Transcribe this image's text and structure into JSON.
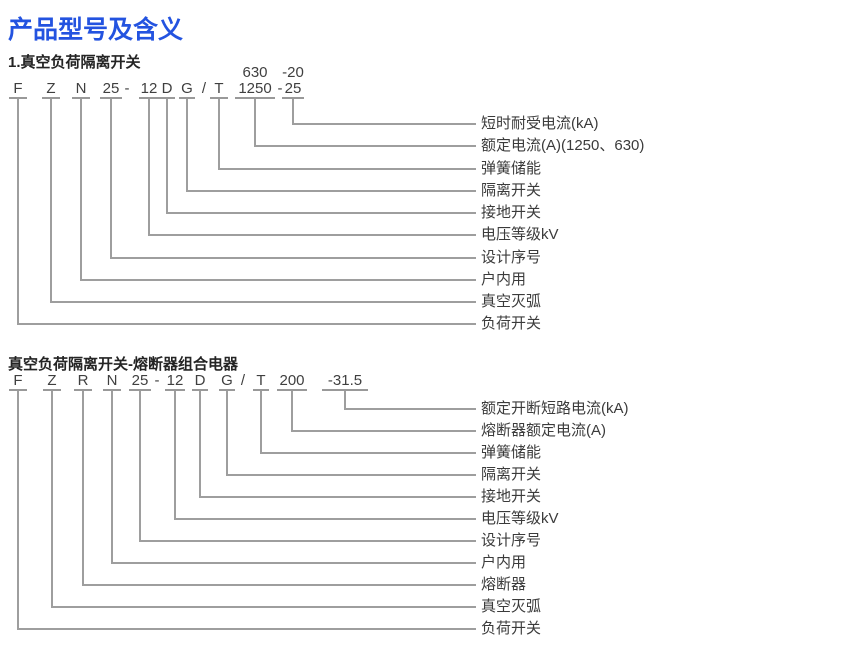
{
  "page_title": "产品型号及含义",
  "colors": {
    "title_blue": "#2353e0",
    "line_gray": "#9e9e9e",
    "text_gray": "#3b3b3b"
  },
  "sections": [
    {
      "heading": "1.真空负荷隔离开关",
      "code_tokens": [
        {
          "text": "F",
          "connect": true
        },
        {
          "text": "Z",
          "connect": true
        },
        {
          "text": "N",
          "connect": true
        },
        {
          "text": "25",
          "connect": true
        },
        {
          "text": "-",
          "connect": false
        },
        {
          "text": "12",
          "connect": true
        },
        {
          "text": "D",
          "connect": true
        },
        {
          "text": "G",
          "connect": true
        },
        {
          "text": "/",
          "connect": false
        },
        {
          "text": "T",
          "connect": true
        },
        {
          "text": "1250",
          "connect": true,
          "above": "630"
        },
        {
          "text": "-",
          "connect": false
        },
        {
          "text": "25",
          "connect": true,
          "above": "-20"
        }
      ],
      "labels": [
        "短时耐受电流(kA)",
        "额定电流(A)(1250、630)",
        "弹簧储能",
        "隔离开关",
        "接地开关",
        "电压等级kV",
        "设计序号",
        "户内用",
        "真空灭弧",
        "负荷开关"
      ]
    },
    {
      "heading": "真空负荷隔离开关-熔断器组合电器",
      "code_tokens": [
        {
          "text": "F",
          "connect": true
        },
        {
          "text": "Z",
          "connect": true
        },
        {
          "text": "R",
          "connect": true
        },
        {
          "text": "N",
          "connect": true
        },
        {
          "text": "25",
          "connect": true
        },
        {
          "text": "-",
          "connect": false
        },
        {
          "text": "12",
          "connect": true
        },
        {
          "text": "D",
          "connect": true
        },
        {
          "text": "G",
          "connect": true
        },
        {
          "text": "/",
          "connect": false
        },
        {
          "text": "T",
          "connect": true
        },
        {
          "text": "200",
          "connect": true
        },
        {
          "text": "-31.5",
          "connect": true
        }
      ],
      "labels": [
        "额定开断短路电流(kA)",
        "熔断器额定电流(A)",
        "弹簧储能",
        "隔离开关",
        "接地开关",
        "电压等级kV",
        "设计序号",
        "户内用",
        "熔断器",
        "真空灭弧",
        "负荷开关"
      ]
    }
  ]
}
